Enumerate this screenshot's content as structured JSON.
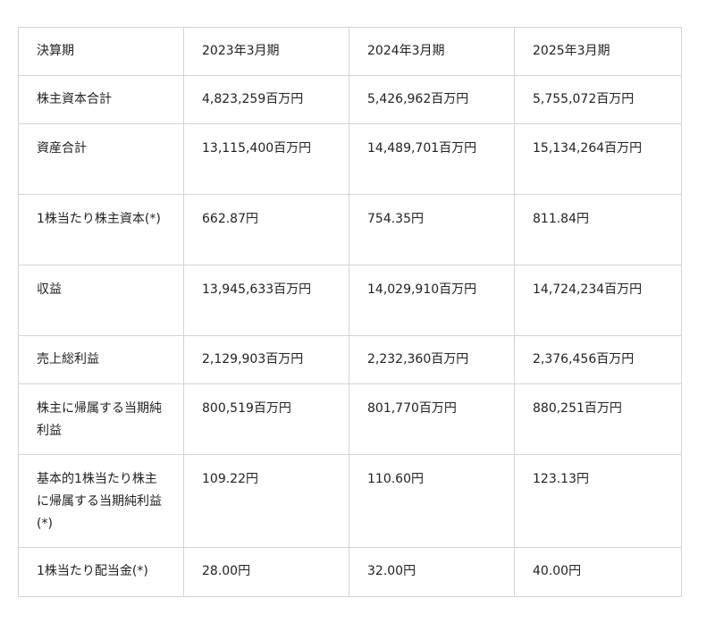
{
  "table": {
    "header": [
      "決算期",
      "2023年3月期",
      "2024年3月期",
      "2025年3月期"
    ],
    "rows": [
      [
        "株主資本合計",
        "4,823,259百万円",
        "5,426,962百万円",
        "5,755,072百万円"
      ],
      [
        "資産合計",
        "13,115,400百万円",
        "14,489,701百万円",
        "15,134,264百万円"
      ],
      [
        "1株当たり株主資本(*)",
        "662.87円",
        "754.35円",
        "811.84円"
      ],
      [
        "収益",
        "13,945,633百万円",
        "14,029,910百万円",
        "14,724,234百万円"
      ],
      [
        "売上総利益",
        "2,129,903百万円",
        "2,232,360百万円",
        "2,376,456百万円"
      ],
      [
        "株主に帰属する当期純利益",
        "800,519百万円",
        "801,770百万円",
        "880,251百万円"
      ],
      [
        "基本的1株当たり株主に帰属する当期純利益(*)",
        "109.22円",
        "110.60円",
        "123.13円"
      ],
      [
        "1株当たり配当金(*)",
        "28.00円",
        "32.00円",
        "40.00円"
      ]
    ]
  }
}
